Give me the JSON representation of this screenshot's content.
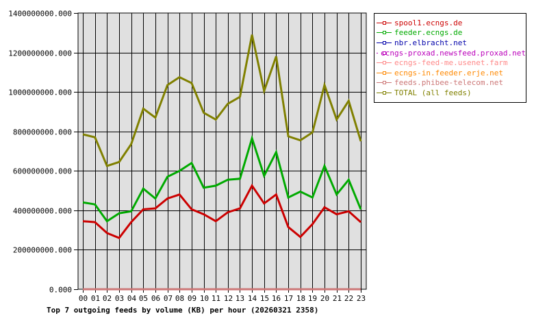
{
  "chart_data": {
    "type": "line",
    "title": "Top 7 outgoing feeds by volume (KB) per hour (20260321 2358)",
    "xlabel": "",
    "ylabel": "",
    "x": [
      "00",
      "01",
      "02",
      "03",
      "04",
      "05",
      "06",
      "07",
      "08",
      "09",
      "10",
      "11",
      "12",
      "13",
      "14",
      "15",
      "16",
      "17",
      "18",
      "19",
      "20",
      "21",
      "22",
      "23"
    ],
    "yticks": [
      "0.000",
      "200000000.000",
      "400000000.000",
      "600000000.000",
      "800000000.000",
      "1000000000.000",
      "1200000000.000",
      "1400000000.000"
    ],
    "ylim": [
      0,
      1400000000
    ],
    "grid": true,
    "legend_position": "right",
    "series": [
      {
        "name": "spool1.ecngs.de",
        "color": "#cc0000",
        "values": [
          345000000,
          340000000,
          285000000,
          260000000,
          340000000,
          405000000,
          410000000,
          460000000,
          480000000,
          405000000,
          380000000,
          345000000,
          390000000,
          410000000,
          525000000,
          435000000,
          480000000,
          315000000,
          265000000,
          330000000,
          415000000,
          380000000,
          395000000,
          340000000
        ]
      },
      {
        "name": "feeder.ecngs.de",
        "color": "#00aa00",
        "values": [
          440000000,
          430000000,
          345000000,
          385000000,
          395000000,
          510000000,
          460000000,
          570000000,
          600000000,
          640000000,
          515000000,
          525000000,
          555000000,
          560000000,
          765000000,
          575000000,
          695000000,
          465000000,
          495000000,
          465000000,
          625000000,
          480000000,
          555000000,
          405000000
        ]
      },
      {
        "name": "nbr.elbracht.net",
        "color": "#0000aa",
        "values": [
          0,
          0,
          0,
          0,
          0,
          0,
          0,
          0,
          0,
          0,
          0,
          0,
          0,
          0,
          0,
          0,
          0,
          0,
          0,
          0,
          0,
          0,
          0,
          0
        ]
      },
      {
        "name": "ecngs-proxad.newsfeed.proxad.net",
        "color": "#bb00bb",
        "values": [
          0,
          0,
          0,
          0,
          0,
          0,
          0,
          0,
          0,
          0,
          0,
          0,
          0,
          0,
          0,
          0,
          0,
          0,
          0,
          0,
          0,
          0,
          0,
          0
        ]
      },
      {
        "name": "ecngs-feed-me.usenet.farm",
        "color": "#ff8888",
        "values": [
          0,
          0,
          0,
          0,
          0,
          0,
          0,
          0,
          0,
          0,
          0,
          0,
          0,
          0,
          0,
          0,
          0,
          0,
          0,
          0,
          0,
          0,
          0,
          0
        ]
      },
      {
        "name": "ecngs-in.feeder.erje.net",
        "color": "#ff8800",
        "values": [
          0,
          0,
          0,
          0,
          0,
          0,
          0,
          0,
          0,
          0,
          0,
          0,
          0,
          0,
          0,
          0,
          0,
          0,
          0,
          0,
          0,
          0,
          0,
          0
        ]
      },
      {
        "name": "feeds.phibee-telecom.net",
        "color": "#cc7777",
        "values": [
          0,
          0,
          0,
          0,
          0,
          0,
          0,
          0,
          0,
          0,
          0,
          0,
          0,
          0,
          0,
          0,
          0,
          0,
          0,
          0,
          0,
          0,
          0,
          0
        ]
      },
      {
        "name": "TOTAL (all feeds)",
        "color": "#808000",
        "values": [
          785000000,
          770000000,
          625000000,
          645000000,
          735000000,
          915000000,
          870000000,
          1035000000,
          1075000000,
          1045000000,
          895000000,
          860000000,
          940000000,
          975000000,
          1290000000,
          1005000000,
          1180000000,
          775000000,
          755000000,
          795000000,
          1035000000,
          860000000,
          955000000,
          750000000
        ]
      }
    ]
  }
}
